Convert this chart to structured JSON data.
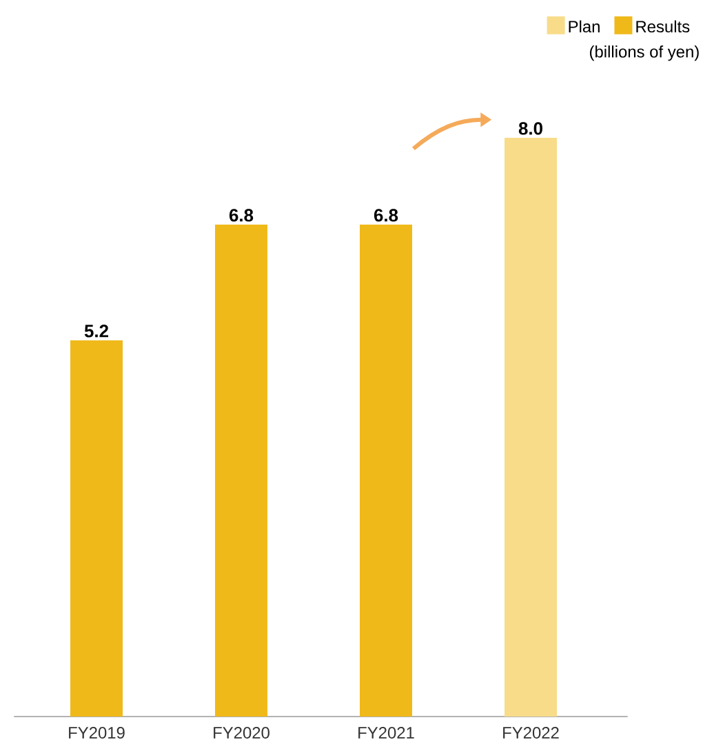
{
  "chart_data": {
    "type": "bar",
    "categories": [
      "FY2019",
      "FY2020",
      "FY2021",
      "FY2022"
    ],
    "series": [
      {
        "name": "Plan",
        "color": "#f8dc8a",
        "values": [
          null,
          null,
          null,
          8.0
        ],
        "value_labels": [
          null,
          null,
          null,
          "8.0"
        ]
      },
      {
        "name": "Results",
        "color": "#f0b91a",
        "values": [
          5.2,
          6.8,
          6.8,
          null
        ],
        "value_labels": [
          "5.2",
          "6.8",
          "6.8",
          null
        ]
      }
    ],
    "annotations": [
      "(billions of yen)"
    ],
    "legend": "top right"
  }
}
